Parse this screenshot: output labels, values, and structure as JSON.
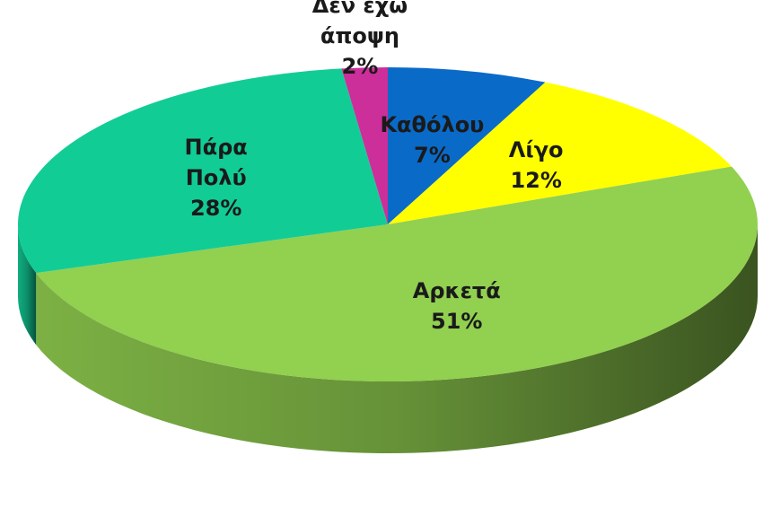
{
  "chart_data": {
    "type": "pie",
    "categories": [
      "Καθόλου",
      "Λίγο",
      "Αρκετά",
      "Πάρα Πολύ",
      "Δεν έχω άποψη"
    ],
    "values": [
      7,
      12,
      51,
      28,
      2
    ],
    "value_labels": [
      "7%",
      "12%",
      "51%",
      "28%",
      "2%"
    ],
    "colors": [
      "#0a6ac8",
      "#ffff00",
      "#92d050",
      "#12cc96",
      "#cc2e9a"
    ]
  }
}
